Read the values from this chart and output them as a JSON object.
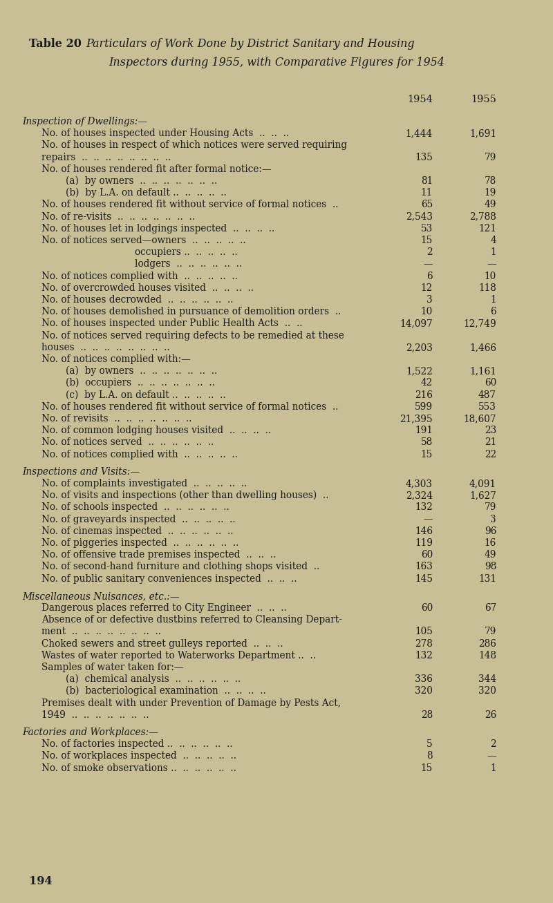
{
  "bg_color": "#c8bf97",
  "text_color": "#1a1a1a",
  "rows": [
    {
      "text": "Inspection of Dwellings:—",
      "indent": 0,
      "italic": true,
      "v1": "",
      "v2": "",
      "section_gap": true
    },
    {
      "text": "No. of houses inspected under Housing Acts  ..  ..  ..",
      "indent": 1,
      "italic": false,
      "v1": "1,444",
      "v2": "1,691"
    },
    {
      "text": "No. of houses in respect of which notices were served requiring",
      "indent": 1,
      "italic": false,
      "v1": "",
      "v2": ""
    },
    {
      "text": "repairs  ..  ..  ..  ..  ..  ..  ..  ..",
      "indent": 1,
      "italic": false,
      "v1": "135",
      "v2": "79"
    },
    {
      "text": "No. of houses rendered fit after formal notice:—",
      "indent": 1,
      "italic": false,
      "v1": "",
      "v2": ""
    },
    {
      "text": "(a)  by owners  ..  ..  ..  ..  ..  ..  ..",
      "indent": 2,
      "italic": false,
      "v1": "81",
      "v2": "78"
    },
    {
      "text": "(b)  by L.A. on default ..  ..  ..  ..  ..",
      "indent": 2,
      "italic": false,
      "v1": "11",
      "v2": "19"
    },
    {
      "text": "No. of houses rendered fit without service of formal notices  ..",
      "indent": 1,
      "italic": false,
      "v1": "65",
      "v2": "49"
    },
    {
      "text": "No. of re-visits  ..  ..  ..  ..  ..  ..  ..",
      "indent": 1,
      "italic": false,
      "v1": "2,543",
      "v2": "2,788"
    },
    {
      "text": "No. of houses let in lodgings inspected  ..  ..  ..  ..",
      "indent": 1,
      "italic": false,
      "v1": "53",
      "v2": "121"
    },
    {
      "text": "No. of notices served—owners  ..  ..  ..  ..  ..",
      "indent": 1,
      "italic": false,
      "v1": "15",
      "v2": "4"
    },
    {
      "text": "occupiers ..  ..  ..  ..  ..",
      "indent": 3,
      "italic": false,
      "v1": "2",
      "v2": "1"
    },
    {
      "text": "lodgers  ..  ..  ..  ..  ..  ..",
      "indent": 3,
      "italic": false,
      "v1": "—",
      "v2": "—"
    },
    {
      "text": "No. of notices complied with  ..  ..  ..  ..  ..",
      "indent": 1,
      "italic": false,
      "v1": "6",
      "v2": "10"
    },
    {
      "text": "No. of overcrowded houses visited  ..  ..  ..  ..",
      "indent": 1,
      "italic": false,
      "v1": "12",
      "v2": "118"
    },
    {
      "text": "No. of houses decrowded  ..  ..  ..  ..  ..  ..",
      "indent": 1,
      "italic": false,
      "v1": "3",
      "v2": "1"
    },
    {
      "text": "No. of houses demolished in pursuance of demolition orders  ..",
      "indent": 1,
      "italic": false,
      "v1": "10",
      "v2": "6"
    },
    {
      "text": "No. of houses inspected under Public Health Acts  ..  ..",
      "indent": 1,
      "italic": false,
      "v1": "14,097",
      "v2": "12,749"
    },
    {
      "text": "No. of notices served requiring defects to be remedied at these",
      "indent": 1,
      "italic": false,
      "v1": "",
      "v2": ""
    },
    {
      "text": "houses  ..  ..  ..  ..  ..  ..  ..  ..",
      "indent": 1,
      "italic": false,
      "v1": "2,203",
      "v2": "1,466"
    },
    {
      "text": "No. of notices complied with:—",
      "indent": 1,
      "italic": false,
      "v1": "",
      "v2": ""
    },
    {
      "text": "(a)  by owners  ..  ..  ..  ..  ..  ..  ..",
      "indent": 2,
      "italic": false,
      "v1": "1,522",
      "v2": "1,161"
    },
    {
      "text": "(b)  occupiers  ..  ..  ..  ..  ..  ..  ..",
      "indent": 2,
      "italic": false,
      "v1": "42",
      "v2": "60"
    },
    {
      "text": "(c)  by L.A. on default ..  ..  ..  ..  ..",
      "indent": 2,
      "italic": false,
      "v1": "216",
      "v2": "487"
    },
    {
      "text": "No. of houses rendered fit without service of formal notices  ..",
      "indent": 1,
      "italic": false,
      "v1": "599",
      "v2": "553"
    },
    {
      "text": "No. of revisits  ..  ..  ..  ..  ..  ..  ..",
      "indent": 1,
      "italic": false,
      "v1": "21,395",
      "v2": "18,607"
    },
    {
      "text": "No. of common lodging houses visited  ..  ..  ..  ..",
      "indent": 1,
      "italic": false,
      "v1": "191",
      "v2": "23"
    },
    {
      "text": "No. of notices served  ..  ..  ..  ..  ..  ..",
      "indent": 1,
      "italic": false,
      "v1": "58",
      "v2": "21"
    },
    {
      "text": "No. of notices complied with  ..  ..  ..  ..  ..",
      "indent": 1,
      "italic": false,
      "v1": "15",
      "v2": "22"
    },
    {
      "text": "Inspections and Visits:—",
      "indent": 0,
      "italic": true,
      "v1": "",
      "v2": "",
      "section_gap": true
    },
    {
      "text": "No. of complaints investigated  ..  ..  ..  ..  ..",
      "indent": 1,
      "italic": false,
      "v1": "4,303",
      "v2": "4,091"
    },
    {
      "text": "No. of visits and inspections (other than dwelling houses)  ..",
      "indent": 1,
      "italic": false,
      "v1": "2,324",
      "v2": "1,627"
    },
    {
      "text": "No. of schools inspected  ..  ..  ..  ..  ..  ..",
      "indent": 1,
      "italic": false,
      "v1": "132",
      "v2": "79"
    },
    {
      "text": "No. of graveyards inspected  ..  ..  ..  ..  ..",
      "indent": 1,
      "italic": false,
      "v1": "—",
      "v2": "3"
    },
    {
      "text": "No. of cinemas inspected  ..  ..  ..  ..  ..  ..",
      "indent": 1,
      "italic": false,
      "v1": "146",
      "v2": "96"
    },
    {
      "text": "No. of piggeries inspected  ..  ..  ..  ..  ..  ..",
      "indent": 1,
      "italic": false,
      "v1": "119",
      "v2": "16"
    },
    {
      "text": "No. of offensive trade premises inspected  ..  ..  ..",
      "indent": 1,
      "italic": false,
      "v1": "60",
      "v2": "49"
    },
    {
      "text": "No. of second-hand furniture and clothing shops visited  ..",
      "indent": 1,
      "italic": false,
      "v1": "163",
      "v2": "98"
    },
    {
      "text": "No. of public sanitary conveniences inspected  ..  ..  ..",
      "indent": 1,
      "italic": false,
      "v1": "145",
      "v2": "131"
    },
    {
      "text": "Miscellaneous Nuisances, etc.:—",
      "indent": 0,
      "italic": true,
      "v1": "",
      "v2": "",
      "section_gap": true
    },
    {
      "text": "Dangerous places referred to City Engineer  ..  ..  ..",
      "indent": 1,
      "italic": false,
      "v1": "60",
      "v2": "67"
    },
    {
      "text": "Absence of or defective dustbins referred to Cleansing Depart-",
      "indent": 1,
      "italic": false,
      "v1": "",
      "v2": ""
    },
    {
      "text": "ment  ..  ..  ..  ..  ..  ..  ..  ..",
      "indent": 1,
      "italic": false,
      "v1": "105",
      "v2": "79"
    },
    {
      "text": "Choked sewers and street gulleys reported  ..  ..  ..",
      "indent": 1,
      "italic": false,
      "v1": "278",
      "v2": "286"
    },
    {
      "text": "Wastes of water reported to Waterworks Department ..  ..",
      "indent": 1,
      "italic": false,
      "v1": "132",
      "v2": "148"
    },
    {
      "text": "Samples of water taken for:—",
      "indent": 1,
      "italic": false,
      "v1": "",
      "v2": ""
    },
    {
      "text": "(a)  chemical analysis  ..  ..  ..  ..  ..  ..",
      "indent": 2,
      "italic": false,
      "v1": "336",
      "v2": "344"
    },
    {
      "text": "(b)  bacteriological examination  ..  ..  ..  ..",
      "indent": 2,
      "italic": false,
      "v1": "320",
      "v2": "320"
    },
    {
      "text": "Premises dealt with under Prevention of Damage by Pests Act,",
      "indent": 1,
      "italic": false,
      "v1": "",
      "v2": ""
    },
    {
      "text": "1949  ..  ..  ..  ..  ..  ..  ..",
      "indent": 1,
      "italic": false,
      "v1": "28",
      "v2": "26"
    },
    {
      "text": "Factories and Workplaces:—",
      "indent": 0,
      "italic": true,
      "v1": "",
      "v2": "",
      "section_gap": true
    },
    {
      "text": "No. of factories inspected ..  ..  ..  ..  ..  ..",
      "indent": 1,
      "italic": false,
      "v1": "5",
      "v2": "2"
    },
    {
      "text": "No. of workplaces inspected  ..  ..  ..  ..  ..",
      "indent": 1,
      "italic": false,
      "v1": "8",
      "v2": "—"
    },
    {
      "text": "No. of smoke observations ..  ..  ..  ..  ..  ..",
      "indent": 1,
      "italic": false,
      "v1": "15",
      "v2": "1"
    }
  ]
}
